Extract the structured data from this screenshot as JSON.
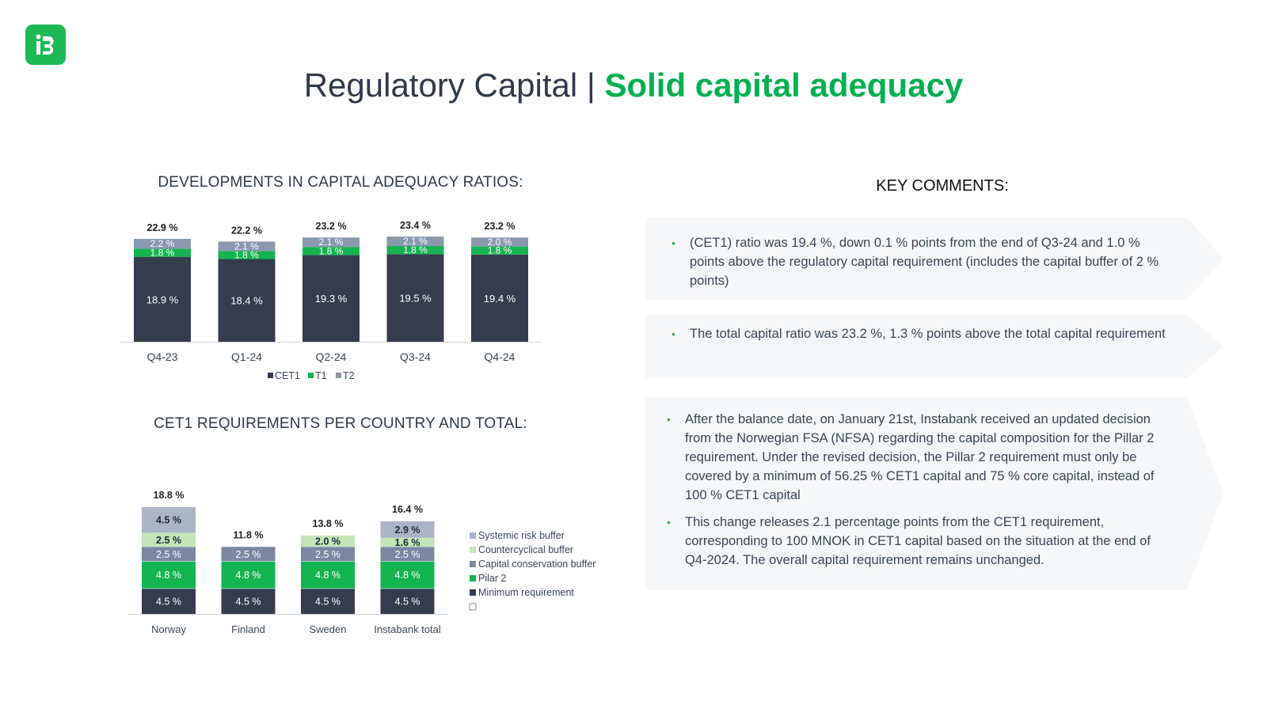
{
  "header": {
    "logo_icon": "instabank-logo-icon",
    "title_main": "Regulatory Capital | ",
    "title_accent": "Solid capital adequacy"
  },
  "colors": {
    "accent": "#00b050",
    "cet1": "#333d4d",
    "t1": "#14b450",
    "t2": "#8a98b0",
    "systemic": "#a9b4c6",
    "countercyclical": "#c3e5b8",
    "conservation": "#7a88a2",
    "pilar2": "#14b450",
    "minimum": "#333d4d",
    "comment_bg": "#f6f7f8"
  },
  "sections": {
    "ratios_title": "DEVELOPMENTS IN CAPITAL ADEQUACY RATIOS:",
    "cet1_title": "CET1 REQUIREMENTS PER COUNTRY AND TOTAL:",
    "comments_title": "KEY COMMENTS:"
  },
  "chart_data": [
    {
      "type": "bar",
      "stacked": true,
      "categories": [
        "Q4-23",
        "Q1-24",
        "Q2-24",
        "Q3-24",
        "Q4-24"
      ],
      "series": [
        {
          "name": "CET1",
          "values": [
            18.9,
            18.4,
            19.3,
            19.5,
            19.4
          ],
          "labels": [
            "18.9 %",
            "18.4 %",
            "19.3 %",
            "19.5 %",
            "19.4 %"
          ]
        },
        {
          "name": "T1",
          "values": [
            1.8,
            1.8,
            1.8,
            1.8,
            1.8
          ],
          "labels": [
            "1.8 %",
            "1.8 %",
            "1.8 %",
            "1.8 %",
            "1.8 %"
          ]
        },
        {
          "name": "T2",
          "values": [
            2.2,
            2.1,
            2.1,
            2.1,
            2.0
          ],
          "labels": [
            "2.2 %",
            "2.1 %",
            "2.1 %",
            "2.1 %",
            "2.0 %"
          ]
        }
      ],
      "totals": [
        "22.9 %",
        "22.2 %",
        "23.2 %",
        "23.4 %",
        "23.2 %"
      ],
      "total_values": [
        22.9,
        22.2,
        23.2,
        23.4,
        23.2
      ],
      "legend": [
        "CET1",
        "T1",
        "T2"
      ],
      "legend_position": "bottom",
      "grid": false
    },
    {
      "type": "bar",
      "stacked": true,
      "categories": [
        "Norway",
        "Finland",
        "Sweden",
        "Instabank total"
      ],
      "series": [
        {
          "name": "Minimum requirement",
          "values": [
            4.5,
            4.5,
            4.5,
            4.5
          ],
          "labels": [
            "4.5 %",
            "4.5 %",
            "4.5 %",
            "4.5 %"
          ]
        },
        {
          "name": "Pilar 2",
          "values": [
            4.8,
            4.8,
            4.8,
            4.8
          ],
          "labels": [
            "4.8 %",
            "4.8 %",
            "4.8 %",
            "4.8 %"
          ]
        },
        {
          "name": "Capital conservation buffer",
          "values": [
            2.5,
            2.5,
            2.5,
            2.5
          ],
          "labels": [
            "2.5 %",
            "2.5 %",
            "2.5 %",
            "2.5 %"
          ]
        },
        {
          "name": "Countercyclical buffer",
          "values": [
            2.5,
            0,
            2.0,
            1.6
          ],
          "labels": [
            "2.5 %",
            "",
            "2.0 %",
            "1.6 %"
          ]
        },
        {
          "name": "Systemic risk buffer",
          "values": [
            4.5,
            0,
            0,
            2.9
          ],
          "labels": [
            "4.5 %",
            "",
            "",
            "2.9 %"
          ]
        }
      ],
      "totals": [
        "18.8 %",
        "11.8 %",
        "13.8 %",
        "16.4 %"
      ],
      "total_values": [
        18.8,
        11.8,
        13.8,
        16.4
      ],
      "legend": [
        "Systemic risk buffer",
        "Countercyclical buffer",
        "Capital conservation buffer",
        "Pilar 2",
        "Minimum requirement",
        ""
      ],
      "legend_position": "right",
      "grid": false
    }
  ],
  "comments": [
    {
      "bullets": [
        "(CET1) ratio was 19.4 %, down 0.1 % points from the end of Q3-24 and 1.0 % points above the regulatory capital requirement (includes the capital buffer of 2 % points)"
      ]
    },
    {
      "bullets": [
        "The total capital ratio was 23.2 %, 1.3 % points above the total capital requirement"
      ]
    },
    {
      "bullets": [
        "After the balance date, on January 21st, Instabank received an updated decision from the Norwegian FSA (NFSA) regarding the capital composition for the Pillar 2 requirement. Under the revised decision, the Pillar 2 requirement must only be covered by a minimum of 56.25 % CET1 capital and 75 % core capital, instead of 100 % CET1 capital",
        "This change releases 2.1 percentage points from the CET1 requirement, corresponding to 100 MNOK in CET1 capital based on the situation at the end of Q4-2024. The overall capital requirement remains unchanged."
      ]
    }
  ]
}
